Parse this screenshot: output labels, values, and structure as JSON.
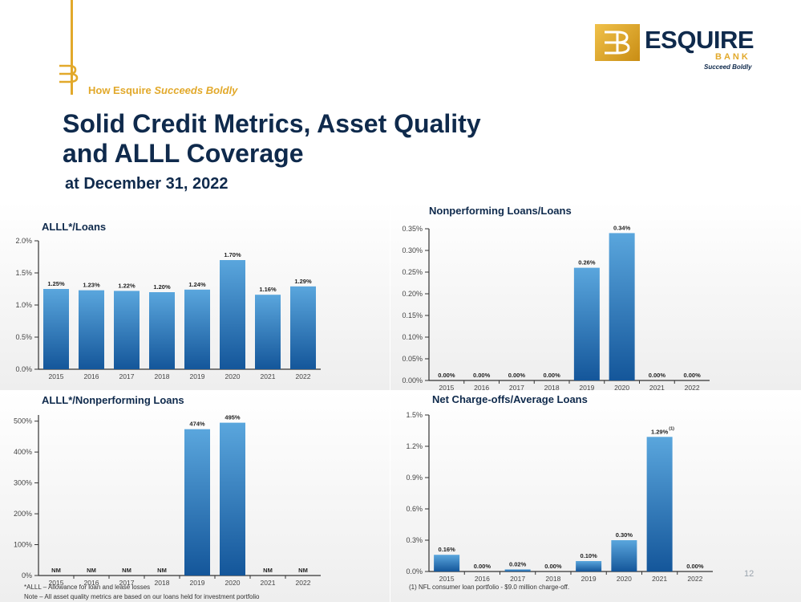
{
  "header": {
    "tagline_prefix": "How Esquire",
    "tagline_emph": "Succeeds Boldly",
    "title_line1": "Solid Credit Metrics, Asset Quality",
    "title_line2": "and ALLL Coverage",
    "subtitle": "at December 31, 2022"
  },
  "logo": {
    "word": "ESQUIRE",
    "sub": "BANK",
    "tag": "Succeed Boldly"
  },
  "page_number": "12",
  "footnotes": {
    "alll_def": "*ALLL – Allowance for loan and lease losses",
    "note": "Note – All asset quality metrics are based on our loans held for investment portfolio",
    "nfl": "(1) NFL consumer loan portfolio - $9.0 million charge-off."
  },
  "colors": {
    "navy": "#0f2a4c",
    "gold": "#e2a92b",
    "bar_top": "#5aa6dd",
    "bar_bottom": "#14569a"
  },
  "chart_data": [
    {
      "type": "bar",
      "title": "ALLL*/Loans",
      "categories": [
        "2015",
        "2016",
        "2017",
        "2018",
        "2019",
        "2020",
        "2021",
        "2022"
      ],
      "values": [
        1.25,
        1.23,
        1.22,
        1.2,
        1.24,
        1.7,
        1.16,
        1.29
      ],
      "labels": [
        "1.25%",
        "1.23%",
        "1.22%",
        "1.20%",
        "1.24%",
        "1.70%",
        "1.16%",
        "1.29%"
      ],
      "ylim": [
        0,
        2.0
      ],
      "yticks": [
        0,
        0.5,
        1.0,
        1.5,
        2.0
      ],
      "ytick_labels": [
        "0.0%",
        "0.5%",
        "1.0%",
        "1.5%",
        "2.0%"
      ]
    },
    {
      "type": "bar",
      "title": "Nonperforming Loans/Loans",
      "categories": [
        "2015",
        "2016",
        "2017",
        "2018",
        "2019",
        "2020",
        "2021",
        "2022"
      ],
      "values": [
        0.0,
        0.0,
        0.0,
        0.0,
        0.26,
        0.34,
        0.0,
        0.0
      ],
      "labels": [
        "0.00%",
        "0.00%",
        "0.00%",
        "0.00%",
        "0.26%",
        "0.34%",
        "0.00%",
        "0.00%"
      ],
      "ylim": [
        0,
        0.35
      ],
      "yticks": [
        0,
        0.05,
        0.1,
        0.15,
        0.2,
        0.25,
        0.3,
        0.35
      ],
      "ytick_labels": [
        "0.00%",
        "0.05%",
        "0.10%",
        "0.15%",
        "0.20%",
        "0.25%",
        "0.30%",
        "0.35%"
      ]
    },
    {
      "type": "bar",
      "title": "ALLL*/Nonperforming Loans",
      "categories": [
        "2015",
        "2016",
        "2017",
        "2018",
        "2019",
        "2020",
        "2021",
        "2022"
      ],
      "values": [
        0,
        0,
        0,
        0,
        474,
        495,
        0,
        0
      ],
      "labels": [
        "NM",
        "NM",
        "NM",
        "NM",
        "474%",
        "495%",
        "NM",
        "NM"
      ],
      "ylim": [
        0,
        520
      ],
      "yticks": [
        0,
        100,
        200,
        300,
        400,
        500
      ],
      "ytick_labels": [
        "0%",
        "100%",
        "200%",
        "300%",
        "400%",
        "500%"
      ]
    },
    {
      "type": "bar",
      "title": "Net Charge-offs/Average Loans",
      "categories": [
        "2015",
        "2016",
        "2017",
        "2018",
        "2019",
        "2020",
        "2021",
        "2022"
      ],
      "values": [
        0.16,
        0.0,
        0.02,
        0.0,
        0.1,
        0.3,
        1.29,
        0.0
      ],
      "labels": [
        "0.16%",
        "0.00%",
        "0.02%",
        "0.00%",
        "0.10%",
        "0.30%",
        "1.29%",
        "0.00%"
      ],
      "label_superscripts": [
        "",
        "",
        "",
        "",
        "",
        "",
        "(1)",
        ""
      ],
      "ylim": [
        0,
        1.5
      ],
      "yticks": [
        0,
        0.3,
        0.6,
        0.9,
        1.2,
        1.5
      ],
      "ytick_labels": [
        "0.0%",
        "0.3%",
        "0.6%",
        "0.9%",
        "1.2%",
        "1.5%"
      ]
    }
  ]
}
